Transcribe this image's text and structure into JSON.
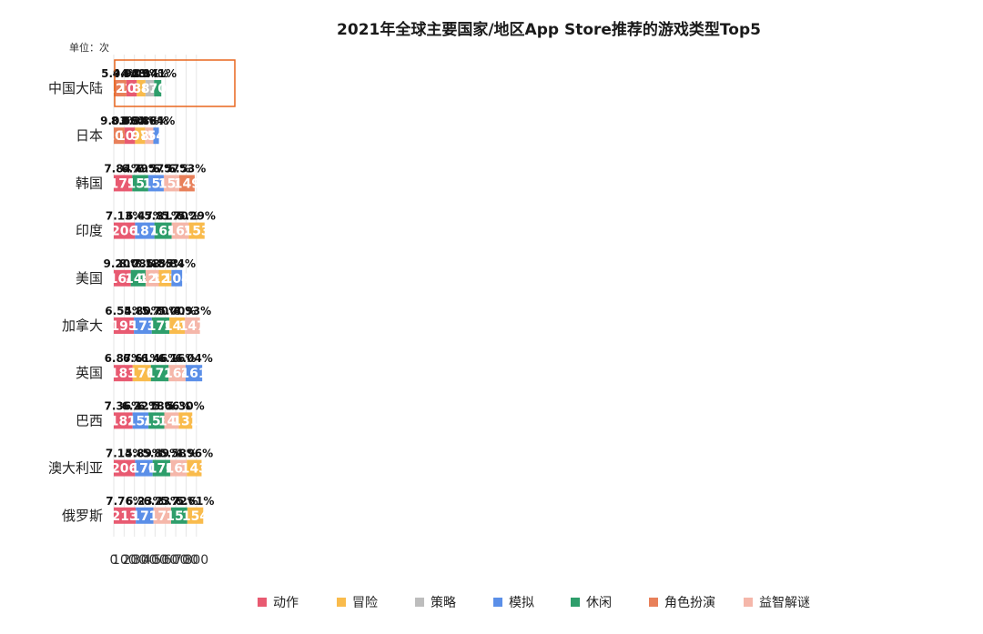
{
  "chart_data": {
    "type": "bar",
    "orientation": "horizontal",
    "stacked": true,
    "title": "2021年全球主要国家/地区App Store推荐的游戏类型Top5",
    "unit_label": "单位：次",
    "xlim": [
      0,
      800
    ],
    "xticks": [
      "0",
      "100",
      "200",
      "300",
      "400",
      "500",
      "600",
      "700",
      "800"
    ],
    "grid": true,
    "legend_position": "bottom",
    "legend": [
      {
        "name": "动作",
        "color": "#E85A71"
      },
      {
        "name": "冒险",
        "color": "#F9BB4C"
      },
      {
        "name": "策略",
        "color": "#BDBDBD"
      },
      {
        "name": "模拟",
        "color": "#5B8FE8"
      },
      {
        "name": "休闲",
        "color": "#2E9E6B"
      },
      {
        "name": "角色扮演",
        "color": "#E8805A"
      },
      {
        "name": "益智解谜",
        "color": "#F5B7AA"
      }
    ],
    "highlight": {
      "row": 0,
      "segment": 0,
      "color": "#E8661E"
    },
    "rows": [
      {
        "label": "中国大陆",
        "segments": [
          {
            "genre": "角色扮演",
            "value": 122,
            "pct": "5.94%"
          },
          {
            "genre": "动作",
            "value": 101,
            "pct": "4.92%"
          },
          {
            "genre": "冒险",
            "value": 84,
            "pct": "4.09%"
          },
          {
            "genre": "策略",
            "value": 83,
            "pct": "4.04%"
          },
          {
            "genre": "休闲",
            "value": 70,
            "pct": "3.41%"
          }
        ]
      },
      {
        "label": "日本",
        "segments": [
          {
            "genre": "角色扮演",
            "value": 105,
            "pct": "9.03%"
          },
          {
            "genre": "动作",
            "value": 101,
            "pct": "8.68%"
          },
          {
            "genre": "冒险",
            "value": 97,
            "pct": "8.34%"
          },
          {
            "genre": "益智解谜",
            "value": 80,
            "pct": "6.88%"
          },
          {
            "genre": "模拟",
            "value": 54,
            "pct": "4.64%"
          }
        ]
      },
      {
        "label": "韩国",
        "segments": [
          {
            "genre": "动作",
            "value": 179,
            "pct": "7.84%"
          },
          {
            "genre": "休闲",
            "value": 155,
            "pct": "6.79%"
          },
          {
            "genre": "模拟",
            "value": 150,
            "pct": "6.57%"
          },
          {
            "genre": "益智解谜",
            "value": 150,
            "pct": "6.57%"
          },
          {
            "genre": "角色扮演",
            "value": 149,
            "pct": "6.53%"
          }
        ]
      },
      {
        "label": "印度",
        "segments": [
          {
            "genre": "动作",
            "value": 206,
            "pct": "7.13%"
          },
          {
            "genre": "模拟",
            "value": 187,
            "pct": "6.47%"
          },
          {
            "genre": "休闲",
            "value": 168,
            "pct": "5.81%"
          },
          {
            "genre": "益智解谜",
            "value": 165,
            "pct": "5.70%"
          },
          {
            "genre": "冒险",
            "value": 153,
            "pct": "5.29%"
          }
        ]
      },
      {
        "label": "美国",
        "segments": [
          {
            "genre": "动作",
            "value": 164,
            "pct": "9.20%"
          },
          {
            "genre": "休闲",
            "value": 144,
            "pct": "8.08%"
          },
          {
            "genre": "益智解谜",
            "value": 128,
            "pct": "7.18%"
          },
          {
            "genre": "冒险",
            "value": 122,
            "pct": "6.85%"
          },
          {
            "genre": "模拟",
            "value": 104,
            "pct": "5.84%"
          }
        ]
      },
      {
        "label": "加拿大",
        "segments": [
          {
            "genre": "动作",
            "value": 195,
            "pct": "6.54%"
          },
          {
            "genre": "模拟",
            "value": 173,
            "pct": "5.80%"
          },
          {
            "genre": "休闲",
            "value": 170,
            "pct": "5.70%"
          },
          {
            "genre": "冒险",
            "value": 149,
            "pct": "5.00%"
          },
          {
            "genre": "益智解谜",
            "value": 147,
            "pct": "4.93%"
          }
        ]
      },
      {
        "label": "英国",
        "segments": [
          {
            "genre": "动作",
            "value": 183,
            "pct": "6.87%"
          },
          {
            "genre": "冒险",
            "value": 176,
            "pct": "6.61%"
          },
          {
            "genre": "休闲",
            "value": 172,
            "pct": "6.46%"
          },
          {
            "genre": "益智解谜",
            "value": 164,
            "pct": "6.16%"
          },
          {
            "genre": "模拟",
            "value": 161,
            "pct": "6.04%"
          }
        ]
      },
      {
        "label": "巴西",
        "segments": [
          {
            "genre": "动作",
            "value": 182,
            "pct": "7.36%"
          },
          {
            "genre": "模拟",
            "value": 154,
            "pct": "6.22%"
          },
          {
            "genre": "休闲",
            "value": 153,
            "pct": "6.18%"
          },
          {
            "genre": "益智解谜",
            "value": 140,
            "pct": "5.66%"
          },
          {
            "genre": "冒险",
            "value": 131,
            "pct": "5.30%"
          }
        ]
      },
      {
        "label": "澳大利亚",
        "segments": [
          {
            "genre": "动作",
            "value": 206,
            "pct": "7.14%"
          },
          {
            "genre": "模拟",
            "value": 170,
            "pct": "5.89%"
          },
          {
            "genre": "休闲",
            "value": 170,
            "pct": "5.89%"
          },
          {
            "genre": "益智解谜",
            "value": 161,
            "pct": "5.58%"
          },
          {
            "genre": "冒险",
            "value": 143,
            "pct": "4.96%"
          }
        ]
      },
      {
        "label": "俄罗斯",
        "segments": [
          {
            "genre": "动作",
            "value": 213,
            "pct": "7.76%"
          },
          {
            "genre": "模拟",
            "value": 171,
            "pct": "6.23%"
          },
          {
            "genre": "益智解谜",
            "value": 171,
            "pct": "6.23%"
          },
          {
            "genre": "休闲",
            "value": 157,
            "pct": "5.72%"
          },
          {
            "genre": "冒险",
            "value": 154,
            "pct": "5.61%"
          }
        ]
      }
    ]
  }
}
